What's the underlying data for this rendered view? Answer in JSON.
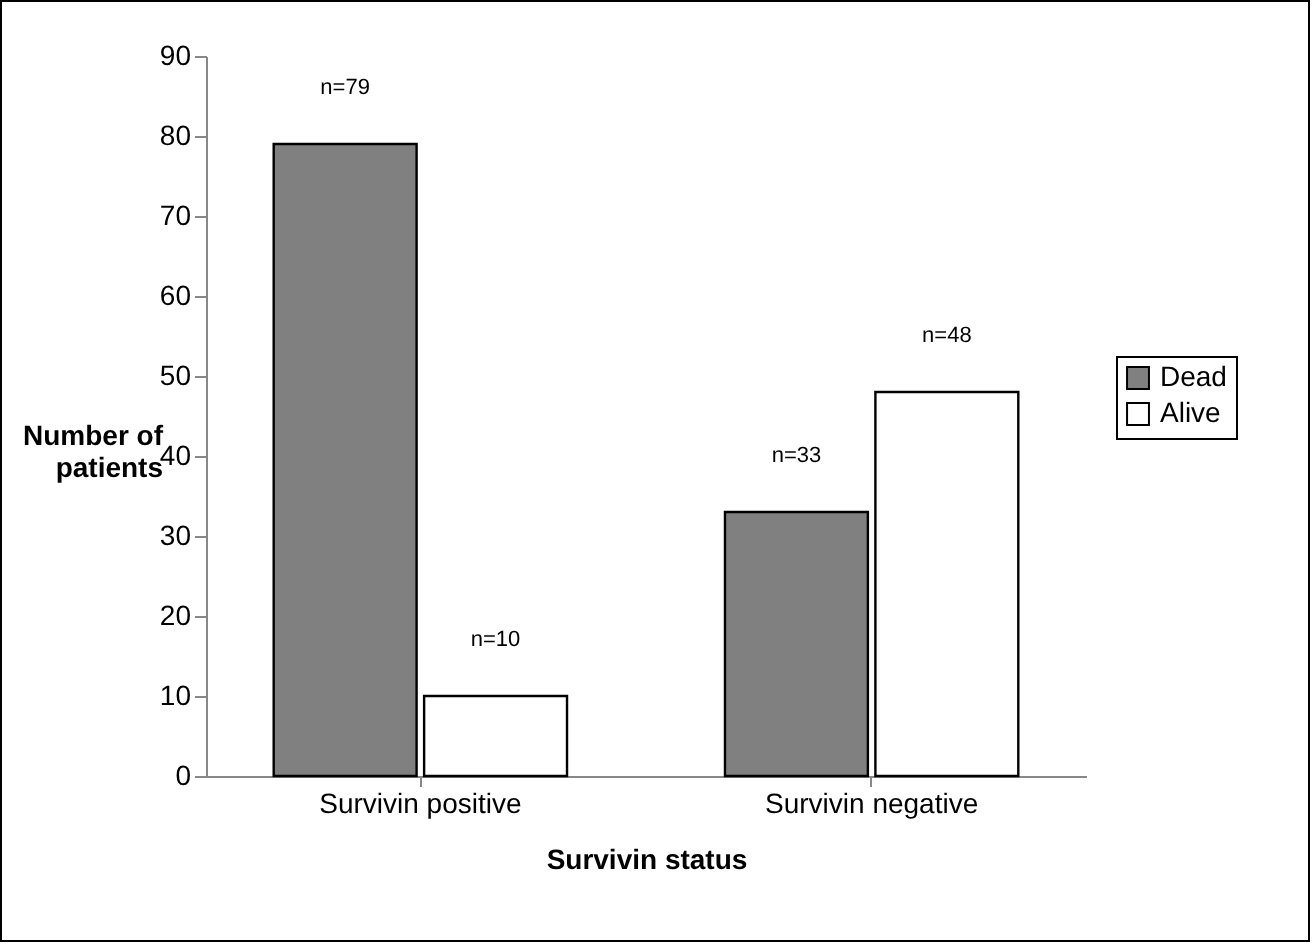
{
  "chart_data": {
    "type": "bar",
    "xlabel": "Survivin status",
    "ylabel": "Number of patients",
    "categories": [
      "Survivin positive",
      "Survivin negative"
    ],
    "series": [
      {
        "name": "Dead",
        "color": "#808080",
        "values": [
          79,
          33
        ],
        "value_labels": [
          "n=79",
          "n=33"
        ]
      },
      {
        "name": "Alive",
        "color": "#ffffff",
        "values": [
          10,
          48
        ],
        "value_labels": [
          "n=10",
          "n=48"
        ]
      }
    ],
    "ylim": [
      0,
      90
    ],
    "yticks": [
      0,
      10,
      20,
      30,
      40,
      50,
      60,
      70,
      80,
      90
    ],
    "grid": false,
    "legend": "right"
  }
}
